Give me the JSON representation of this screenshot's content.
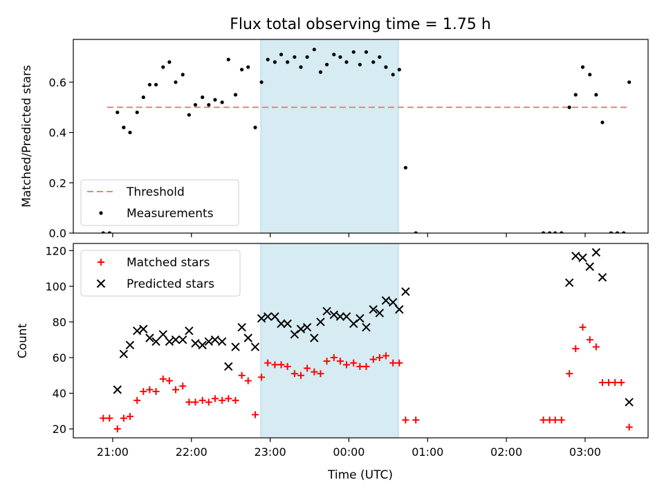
{
  "chart_data": {
    "type": "scatter",
    "title": "Flux total observing time = 1.75 h",
    "xlabel": "Time (UTC)",
    "x_ticks": [
      "21:00",
      "22:00",
      "23:00",
      "00:00",
      "01:00",
      "02:00",
      "03:00"
    ],
    "x_tick_hours": [
      21,
      22,
      23,
      24,
      25,
      26,
      27
    ],
    "x_range_hours": [
      20.5,
      27.8
    ],
    "highlight_span_hours": [
      22.88,
      24.63
    ],
    "colors": {
      "measurements": "#000000",
      "threshold": "#f08080",
      "matched": "#ff0000",
      "predicted": "#000000",
      "highlight": "#add8e6"
    },
    "panels": [
      {
        "ylabel": "Matched/Predicted stars",
        "ylim": [
          0,
          0.77
        ],
        "y_ticks": [
          0.0,
          0.2,
          0.4,
          0.6
        ],
        "y_tick_labels": [
          "0.0",
          "0.2",
          "0.4",
          "0.6"
        ],
        "legend_position": "lower-left",
        "threshold": {
          "name": "Threshold",
          "value": 0.5,
          "x_range": [
            20.93,
            27.55
          ]
        },
        "measurements_name": "Measurements",
        "measurements": [
          [
            20.88,
            0.0
          ],
          [
            20.96,
            0.0
          ],
          [
            21.06,
            0.48
          ],
          [
            21.14,
            0.42
          ],
          [
            21.22,
            0.4
          ],
          [
            21.31,
            0.48
          ],
          [
            21.39,
            0.54
          ],
          [
            21.47,
            0.59
          ],
          [
            21.55,
            0.59
          ],
          [
            21.64,
            0.66
          ],
          [
            21.72,
            0.68
          ],
          [
            21.8,
            0.6
          ],
          [
            21.89,
            0.63
          ],
          [
            21.97,
            0.47
          ],
          [
            22.05,
            0.51
          ],
          [
            22.14,
            0.54
          ],
          [
            22.22,
            0.51
          ],
          [
            22.3,
            0.53
          ],
          [
            22.39,
            0.52
          ],
          [
            22.47,
            0.69
          ],
          [
            22.56,
            0.55
          ],
          [
            22.64,
            0.65
          ],
          [
            22.72,
            0.66
          ],
          [
            22.81,
            0.42
          ],
          [
            22.89,
            0.6
          ],
          [
            22.97,
            0.69
          ],
          [
            23.06,
            0.68
          ],
          [
            23.14,
            0.71
          ],
          [
            23.22,
            0.68
          ],
          [
            23.31,
            0.7
          ],
          [
            23.39,
            0.66
          ],
          [
            23.47,
            0.7
          ],
          [
            23.56,
            0.73
          ],
          [
            23.64,
            0.64
          ],
          [
            23.72,
            0.67
          ],
          [
            23.81,
            0.71
          ],
          [
            23.89,
            0.7
          ],
          [
            23.97,
            0.68
          ],
          [
            24.06,
            0.72
          ],
          [
            24.14,
            0.67
          ],
          [
            24.22,
            0.72
          ],
          [
            24.31,
            0.68
          ],
          [
            24.39,
            0.7
          ],
          [
            24.47,
            0.66
          ],
          [
            24.56,
            0.63
          ],
          [
            24.64,
            0.65
          ],
          [
            24.72,
            0.26
          ],
          [
            24.85,
            0.0
          ],
          [
            26.47,
            0.0
          ],
          [
            26.55,
            0.0
          ],
          [
            26.62,
            0.0
          ],
          [
            26.7,
            0.0
          ],
          [
            26.8,
            0.5
          ],
          [
            26.88,
            0.55
          ],
          [
            26.97,
            0.66
          ],
          [
            27.06,
            0.63
          ],
          [
            27.14,
            0.55
          ],
          [
            27.22,
            0.44
          ],
          [
            27.33,
            0.0
          ],
          [
            27.41,
            0.0
          ],
          [
            27.49,
            0.0
          ],
          [
            27.56,
            0.6
          ]
        ]
      },
      {
        "ylabel": "Count",
        "ylim": [
          15,
          124
        ],
        "y_ticks": [
          20,
          40,
          60,
          80,
          100,
          120
        ],
        "y_tick_labels": [
          "20",
          "40",
          "60",
          "80",
          "100",
          "120"
        ],
        "legend_position": "upper-left",
        "series": [
          {
            "name": "Matched stars",
            "marker": "plus",
            "points": [
              [
                20.88,
                26
              ],
              [
                20.96,
                26
              ],
              [
                21.06,
                20
              ],
              [
                21.14,
                26
              ],
              [
                21.22,
                27
              ],
              [
                21.31,
                36
              ],
              [
                21.39,
                41
              ],
              [
                21.47,
                42
              ],
              [
                21.55,
                41
              ],
              [
                21.64,
                48
              ],
              [
                21.72,
                47
              ],
              [
                21.8,
                42
              ],
              [
                21.89,
                44
              ],
              [
                21.97,
                35
              ],
              [
                22.05,
                35
              ],
              [
                22.14,
                36
              ],
              [
                22.22,
                35
              ],
              [
                22.3,
                37
              ],
              [
                22.39,
                36
              ],
              [
                22.47,
                37
              ],
              [
                22.56,
                36
              ],
              [
                22.64,
                50
              ],
              [
                22.72,
                47
              ],
              [
                22.81,
                28
              ],
              [
                22.89,
                49
              ],
              [
                22.97,
                57
              ],
              [
                23.06,
                56
              ],
              [
                23.14,
                56
              ],
              [
                23.22,
                55
              ],
              [
                23.31,
                51
              ],
              [
                23.39,
                50
              ],
              [
                23.47,
                54
              ],
              [
                23.56,
                52
              ],
              [
                23.64,
                51
              ],
              [
                23.72,
                58
              ],
              [
                23.81,
                60
              ],
              [
                23.89,
                58
              ],
              [
                23.97,
                56
              ],
              [
                24.06,
                57
              ],
              [
                24.14,
                55
              ],
              [
                24.22,
                55
              ],
              [
                24.31,
                59
              ],
              [
                24.39,
                60
              ],
              [
                24.47,
                61
              ],
              [
                24.56,
                57
              ],
              [
                24.64,
                57
              ],
              [
                24.72,
                25
              ],
              [
                24.85,
                25
              ],
              [
                26.47,
                25
              ],
              [
                26.55,
                25
              ],
              [
                26.62,
                25
              ],
              [
                26.7,
                25
              ],
              [
                26.8,
                51
              ],
              [
                26.88,
                65
              ],
              [
                26.97,
                77
              ],
              [
                27.06,
                70
              ],
              [
                27.14,
                66
              ],
              [
                27.22,
                46
              ],
              [
                27.3,
                46
              ],
              [
                27.38,
                46
              ],
              [
                27.46,
                46
              ],
              [
                27.56,
                21
              ]
            ]
          },
          {
            "name": "Predicted stars",
            "marker": "x",
            "points": [
              [
                21.06,
                42
              ],
              [
                21.14,
                62
              ],
              [
                21.22,
                67
              ],
              [
                21.31,
                75
              ],
              [
                21.39,
                76
              ],
              [
                21.47,
                71
              ],
              [
                21.55,
                69
              ],
              [
                21.64,
                73
              ],
              [
                21.72,
                69
              ],
              [
                21.8,
                70
              ],
              [
                21.89,
                70
              ],
              [
                21.97,
                75
              ],
              [
                22.05,
                68
              ],
              [
                22.14,
                67
              ],
              [
                22.22,
                69
              ],
              [
                22.3,
                70
              ],
              [
                22.39,
                69
              ],
              [
                22.47,
                55
              ],
              [
                22.56,
                66
              ],
              [
                22.64,
                77
              ],
              [
                22.72,
                71
              ],
              [
                22.81,
                66
              ],
              [
                22.89,
                82
              ],
              [
                22.97,
                83
              ],
              [
                23.06,
                83
              ],
              [
                23.14,
                79
              ],
              [
                23.22,
                79
              ],
              [
                23.31,
                73
              ],
              [
                23.39,
                76
              ],
              [
                23.47,
                77
              ],
              [
                23.56,
                71
              ],
              [
                23.64,
                80
              ],
              [
                23.72,
                86
              ],
              [
                23.81,
                84
              ],
              [
                23.89,
                83
              ],
              [
                23.97,
                83
              ],
              [
                24.06,
                79
              ],
              [
                24.14,
                82
              ],
              [
                24.22,
                77
              ],
              [
                24.31,
                87
              ],
              [
                24.39,
                85
              ],
              [
                24.47,
                92
              ],
              [
                24.56,
                91
              ],
              [
                24.64,
                87
              ],
              [
                24.72,
                97
              ],
              [
                26.8,
                102
              ],
              [
                26.88,
                117
              ],
              [
                26.97,
                116
              ],
              [
                27.06,
                111
              ],
              [
                27.14,
                119
              ],
              [
                27.22,
                105
              ],
              [
                27.56,
                35
              ]
            ]
          }
        ]
      }
    ]
  }
}
